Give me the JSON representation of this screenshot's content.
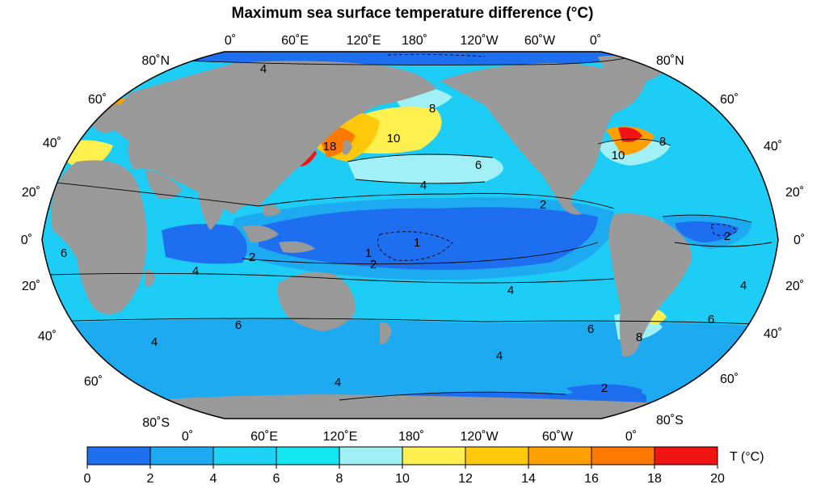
{
  "title": "Maximum sea surface temperature difference (°C)",
  "top_lon_labels": [
    "0˚",
    "60˚E",
    "120˚E",
    "180˚",
    "120˚W",
    "60˚W",
    "0˚"
  ],
  "bottom_lon_labels": [
    "0˚",
    "60˚E",
    "120˚E",
    "180˚",
    "120˚W",
    "60˚W",
    "0˚"
  ],
  "left_lat_labels": [
    "80˚N",
    "60˚",
    "40˚",
    "20˚",
    "0˚",
    "20˚",
    "40˚",
    "60˚",
    "80˚S"
  ],
  "right_lat_labels": [
    "80˚N",
    "60˚",
    "40˚",
    "20˚",
    "0˚",
    "20˚",
    "40˚",
    "60˚",
    "80˚S"
  ],
  "contour_labels": [
    "4",
    "8",
    "18",
    "10",
    "6",
    "4",
    "2",
    "1",
    "2",
    "1",
    "2",
    "10",
    "8",
    "6",
    "4",
    "2",
    "4",
    "6",
    "4",
    "4",
    "4",
    "6",
    "8",
    "6",
    "4",
    "2"
  ],
  "colorbar": {
    "unit_label": "T (°C)",
    "ticks": [
      "0",
      "2",
      "4",
      "6",
      "8",
      "10",
      "12",
      "14",
      "16",
      "18",
      "20"
    ],
    "colors": [
      "#1e6ef0",
      "#1eaaf0",
      "#1ed2f5",
      "#14e6f0",
      "#a0f0f5",
      "#fff050",
      "#ffc80a",
      "#ffa000",
      "#ff7800",
      "#f01414"
    ]
  },
  "colors": {
    "land": "#999999",
    "ocean_base": "#1ecdf5",
    "cold": "#1e6ef0",
    "mid_blue": "#1eaaf0",
    "light_cyan": "#a0f0f5",
    "yellow": "#fff050",
    "orange": "#ffa000",
    "red": "#f01414"
  }
}
